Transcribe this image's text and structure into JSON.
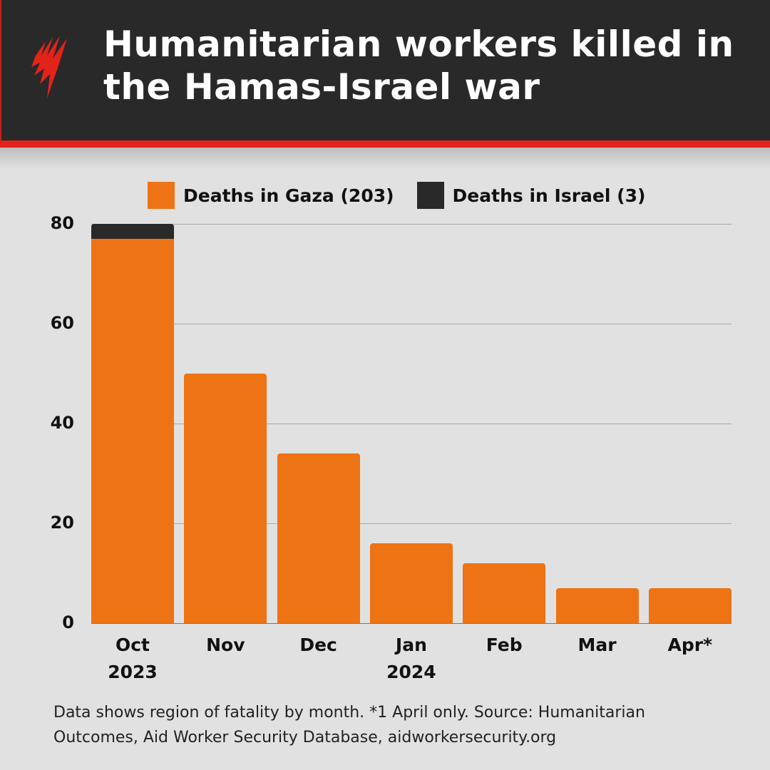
{
  "header": {
    "title_line1": "Humanitarian workers killed in",
    "title_line2": "the Hamas-Israel war",
    "logo": "sbs-news-logo-icon",
    "accent_color": "#e2231a",
    "background_color": "#292929"
  },
  "legend": {
    "gaza": "Deaths in Gaza (203)",
    "israel": "Deaths in Israel (3)"
  },
  "y_ticks": [
    "80",
    "60",
    "40",
    "20",
    "0"
  ],
  "x_labels": [
    {
      "l1": "Oct",
      "l2": "2023"
    },
    {
      "l1": "Nov",
      "l2": ""
    },
    {
      "l1": "Dec",
      "l2": ""
    },
    {
      "l1": "Jan",
      "l2": "2024"
    },
    {
      "l1": "Feb",
      "l2": ""
    },
    {
      "l1": "Mar",
      "l2": ""
    },
    {
      "l1": "Apr*",
      "l2": ""
    }
  ],
  "footnote_line1": "Data shows region of fatality by month. *1 April only.  Source: Humanitarian",
  "footnote_line2": "Outcomes, Aid Worker Security Database, aidworkersecurity.org",
  "chart_data": {
    "type": "bar",
    "stacked": true,
    "title": "Humanitarian workers killed in the Hamas-Israel war",
    "xlabel": "",
    "ylabel": "",
    "categories": [
      "Oct 2023",
      "Nov",
      "Dec",
      "Jan 2024",
      "Feb",
      "Mar",
      "Apr*"
    ],
    "series": [
      {
        "name": "Deaths in Gaza (203)",
        "color": "#ee7314",
        "values": [
          77,
          50,
          34,
          16,
          12,
          7,
          7
        ]
      },
      {
        "name": "Deaths in Israel (3)",
        "color": "#292929",
        "values": [
          3,
          0,
          0,
          0,
          0,
          0,
          0
        ]
      }
    ],
    "ylim": [
      0,
      80
    ],
    "y_ticks": [
      0,
      20,
      40,
      60,
      80
    ],
    "grid": true,
    "legend_position": "top",
    "annotation": "*1 April only"
  }
}
